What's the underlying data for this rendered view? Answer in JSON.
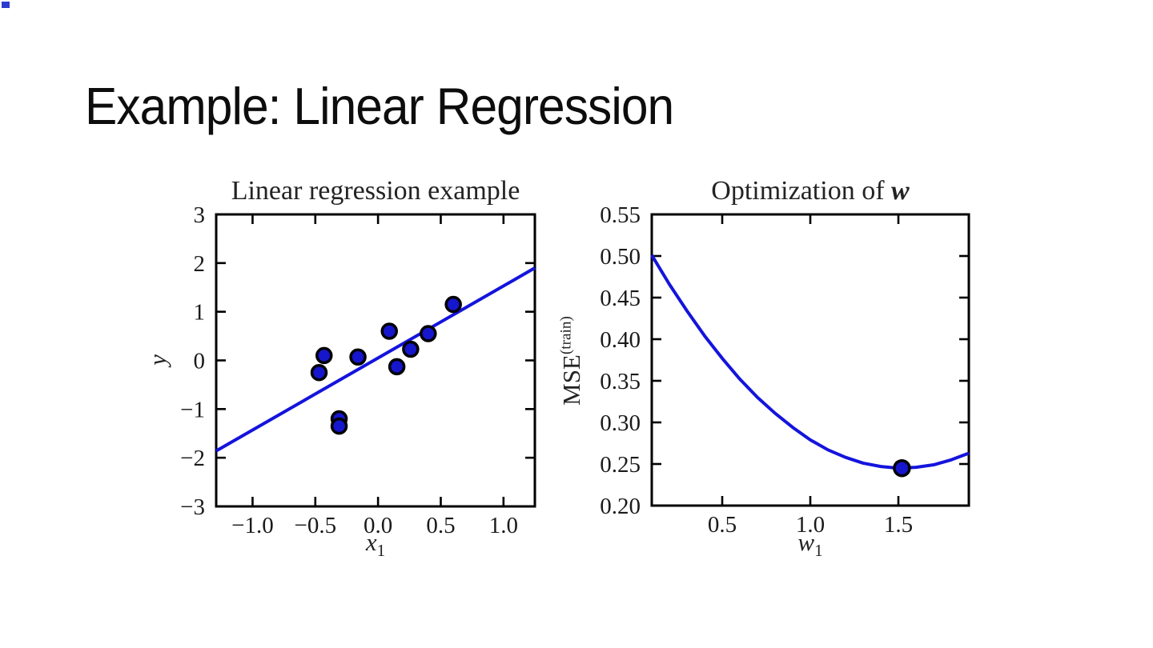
{
  "slide": {
    "title": "Example: Linear Regression",
    "background": "#ffffff"
  },
  "decoration": {
    "corner_marker_color": "#2b3bd0"
  },
  "chart_data": [
    {
      "type": "scatter",
      "title": "Linear regression example",
      "xlabel": "x",
      "xlabel_sub": "1",
      "ylabel": "y",
      "xlim": [
        -1.29,
        1.25
      ],
      "ylim": [
        -3,
        3
      ],
      "xticks": [
        -1.0,
        -0.5,
        0.0,
        0.5,
        1.0
      ],
      "xtick_labels": [
        "−1.0",
        "−0.5",
        "0.0",
        "0.5",
        "1.0"
      ],
      "yticks": [
        3,
        2,
        1,
        0,
        -1,
        -2,
        -3
      ],
      "ytick_labels": [
        "3",
        "2",
        "1",
        "0",
        "−1",
        "−2",
        "−3"
      ],
      "grid": false,
      "points": [
        [
          -0.47,
          -0.25
        ],
        [
          -0.43,
          0.1
        ],
        [
          -0.31,
          -1.2
        ],
        [
          -0.31,
          -1.35
        ],
        [
          -0.16,
          0.07
        ],
        [
          0.09,
          0.6
        ],
        [
          0.15,
          -0.13
        ],
        [
          0.26,
          0.23
        ],
        [
          0.4,
          0.55
        ],
        [
          0.6,
          1.15
        ]
      ],
      "fit_line": [
        [
          -1.29,
          -1.86
        ],
        [
          1.25,
          1.9
        ]
      ],
      "line_color": "#1414dd",
      "marker_fill": "#1616cc",
      "marker_edge": "#000000"
    },
    {
      "type": "line",
      "title_prefix": "Optimization of ",
      "title_var": "w",
      "xlabel": "w",
      "xlabel_sub": "1",
      "ylabel_base": "MSE",
      "ylabel_sup": "(train)",
      "xlim": [
        0.1,
        1.9
      ],
      "ylim": [
        0.2,
        0.55
      ],
      "xticks": [
        0.5,
        1.0,
        1.5
      ],
      "xtick_labels": [
        "0.5",
        "1.0",
        "1.5"
      ],
      "yticks": [
        0.55,
        0.5,
        0.45,
        0.4,
        0.35,
        0.3,
        0.25,
        0.2
      ],
      "ytick_labels": [
        "0.55",
        "0.50",
        "0.45",
        "0.40",
        "0.35",
        "0.30",
        "0.25",
        "0.20"
      ],
      "grid": false,
      "curve": [
        [
          0.1,
          0.501
        ],
        [
          0.2,
          0.466
        ],
        [
          0.3,
          0.434
        ],
        [
          0.4,
          0.404
        ],
        [
          0.5,
          0.377
        ],
        [
          0.6,
          0.352
        ],
        [
          0.7,
          0.33
        ],
        [
          0.8,
          0.311
        ],
        [
          0.9,
          0.294
        ],
        [
          1.0,
          0.279
        ],
        [
          1.1,
          0.267
        ],
        [
          1.2,
          0.258
        ],
        [
          1.3,
          0.251
        ],
        [
          1.4,
          0.247
        ],
        [
          1.5,
          0.245
        ],
        [
          1.6,
          0.246
        ],
        [
          1.7,
          0.249
        ],
        [
          1.8,
          0.255
        ],
        [
          1.9,
          0.263
        ]
      ],
      "min_point": [
        1.52,
        0.245
      ],
      "line_color": "#1414dd",
      "marker_fill": "#1616cc",
      "marker_edge": "#000000"
    }
  ]
}
